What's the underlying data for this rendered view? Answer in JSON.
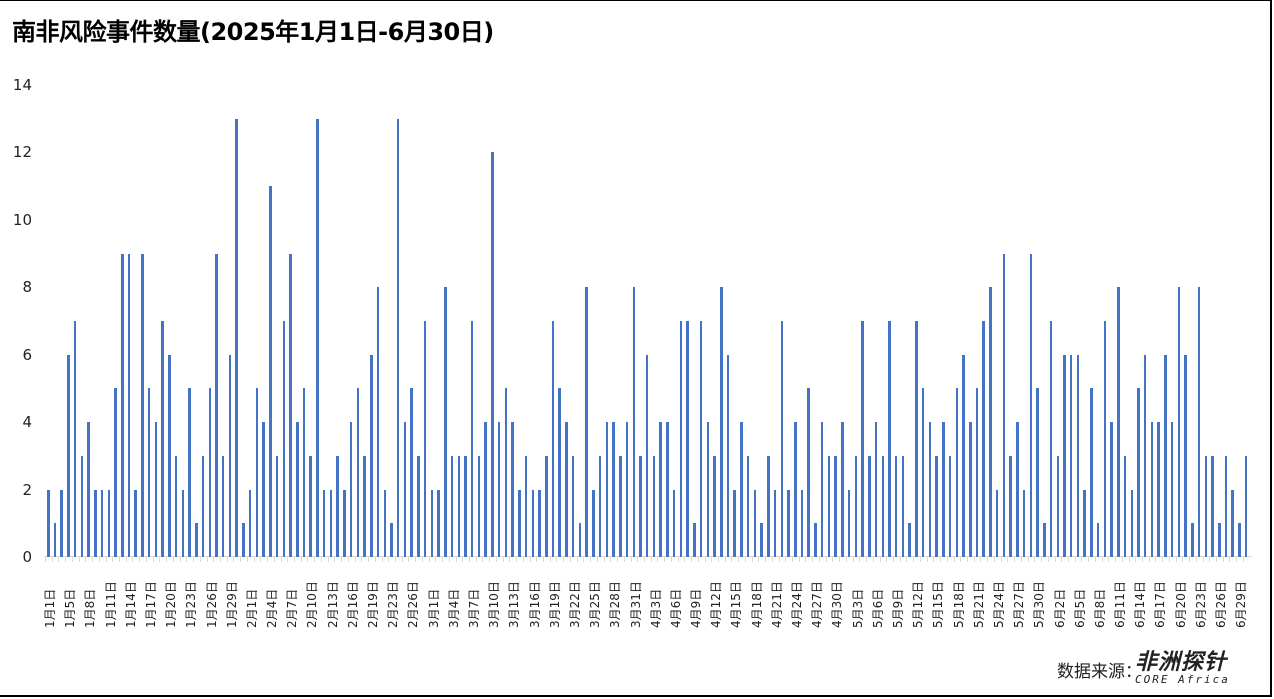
{
  "title": "南非风险事件数量(2025年1月1日-6月30日)",
  "source_label": "数据来源：",
  "logo": {
    "cn": "非洲探针",
    "en": "CORE Africa"
  },
  "colors": {
    "bar": "#4472c4",
    "axis": "#d9d9d9"
  },
  "chart_data": {
    "type": "bar",
    "title": "南非风险事件数量(2025年1月1日-6月30日)",
    "xlabel": "",
    "ylabel": "",
    "ylim": [
      0,
      14
    ],
    "yticks": [
      0,
      2,
      4,
      6,
      8,
      10,
      12,
      14
    ],
    "grid": false,
    "legend": null,
    "x_tick_labels": [
      "1月1日",
      "1月5日",
      "1月8日",
      "1月11日",
      "1月14日",
      "1月17日",
      "1月20日",
      "1月23日",
      "1月26日",
      "1月29日",
      "2月1日",
      "2月4日",
      "2月7日",
      "2月10日",
      "2月13日",
      "2月16日",
      "2月19日",
      "2月23日",
      "2月26日",
      "3月1日",
      "3月4日",
      "3月7日",
      "3月10日",
      "3月13日",
      "3月16日",
      "3月19日",
      "3月22日",
      "3月25日",
      "3月28日",
      "3月31日",
      "4月3日",
      "4月6日",
      "4月9日",
      "4月12日",
      "4月15日",
      "4月18日",
      "4月21日",
      "4月24日",
      "4月27日",
      "4月30日",
      "5月3日",
      "5月6日",
      "5月9日",
      "5月12日",
      "5月15日",
      "5月18日",
      "5月21日",
      "5月24日",
      "5月27日",
      "5月30日",
      "6月2日",
      "6月5日",
      "6月8日",
      "6月11日",
      "6月14日",
      "6月17日",
      "6月20日",
      "6月23日",
      "6月26日",
      "6月29日"
    ],
    "values": [
      2,
      1,
      2,
      6,
      7,
      3,
      4,
      2,
      2,
      2,
      5,
      9,
      9,
      2,
      9,
      5,
      4,
      7,
      6,
      3,
      2,
      5,
      1,
      3,
      5,
      9,
      3,
      6,
      13,
      1,
      2,
      5,
      4,
      11,
      3,
      7,
      9,
      4,
      5,
      3,
      13,
      2,
      2,
      3,
      2,
      4,
      5,
      3,
      6,
      8,
      2,
      1,
      13,
      4,
      5,
      3,
      7,
      2,
      2,
      8,
      3,
      3,
      3,
      7,
      3,
      4,
      12,
      4,
      5,
      4,
      2,
      3,
      2,
      2,
      3,
      7,
      5,
      4,
      3,
      1,
      8,
      2,
      3,
      4,
      4,
      3,
      4,
      8,
      3,
      6,
      3,
      4,
      4,
      2,
      7,
      7,
      1,
      7,
      4,
      3,
      8,
      6,
      2,
      4,
      3,
      2,
      1,
      3,
      2,
      7,
      2,
      4,
      2,
      5,
      1,
      4,
      3,
      3,
      4,
      2,
      3,
      7,
      3,
      4,
      3,
      7,
      3,
      3,
      1,
      7,
      5,
      4,
      3,
      4,
      3,
      5,
      6,
      4,
      5,
      7,
      8,
      2,
      9,
      3,
      4,
      2,
      9,
      5,
      1,
      7,
      3,
      6,
      6,
      6,
      2,
      5,
      1,
      7,
      4,
      8,
      3,
      2,
      5,
      6,
      4,
      4,
      6,
      4,
      8,
      6,
      1,
      8,
      3,
      3,
      1,
      3,
      2,
      1,
      3
    ],
    "label_every": 3
  }
}
